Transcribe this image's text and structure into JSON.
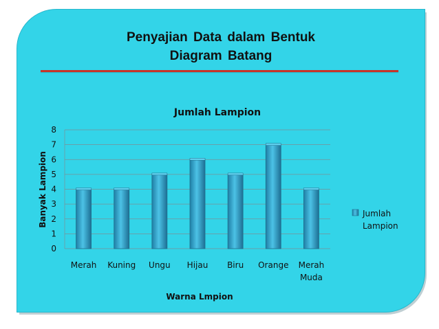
{
  "slide": {
    "title_line1": "Penyajian  Data  dalam  Bentuk",
    "title_line2": "Diagram Batang"
  },
  "colors": {
    "background": "#33d4e8",
    "bar_fill": "#2a9dc0",
    "bar_edge": "#1e6f8c",
    "title_underline": "#c8342a"
  },
  "chart_data": {
    "type": "bar",
    "title": "Jumlah Lampion",
    "xlabel": "Warna Lmpion",
    "ylabel": "Banyak Lampion",
    "categories": [
      "Merah",
      "Kuning",
      "Ungu",
      "Hijau",
      "Biru",
      "Orange",
      "Merah Muda"
    ],
    "series": [
      {
        "name": "Jumlah Lampion",
        "values": [
          4,
          4,
          5,
          6,
          5,
          7,
          4
        ]
      }
    ],
    "ylim": [
      0,
      8
    ],
    "yticks": [
      0,
      1,
      2,
      3,
      4,
      5,
      6,
      7,
      8
    ],
    "grid": true,
    "legend": "right"
  }
}
